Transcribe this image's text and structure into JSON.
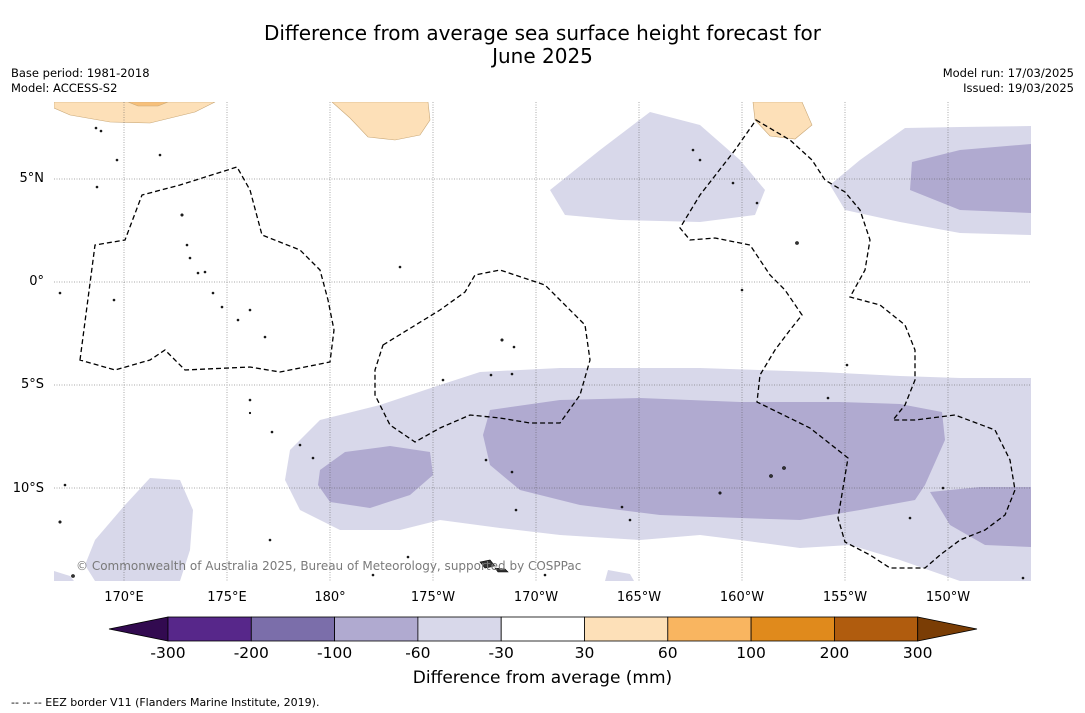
{
  "title_line1": "Difference from average sea surface height forecast for",
  "title_line2": "June 2025",
  "meta": {
    "base_period": "Base period: 1981-2018",
    "model": "Model: ACCESS-S2",
    "model_run": "Model run: 17/03/2025",
    "issued": "Issued: 19/03/2025"
  },
  "copyright": "© Commonwealth of Australia 2025, Bureau of Meteorology, supported by COSPPac",
  "lat_labels": [
    "5°N",
    "0°",
    "5°S",
    "10°S"
  ],
  "lon_labels": [
    "170°E",
    "175°E",
    "180°",
    "175°W",
    "170°W",
    "165°W",
    "160°W",
    "155°W",
    "150°W"
  ],
  "colorbar": {
    "title": "Difference from average (mm)",
    "ticks": [
      "-300",
      "-200",
      "-100",
      "-60",
      "-30",
      "30",
      "60",
      "100",
      "200",
      "300"
    ],
    "colors": [
      "#320a50",
      "#57278a",
      "#7b6eaa",
      "#b0aad0",
      "#d8d8ea",
      "#ffffff",
      "#fde0b8",
      "#f9b560",
      "#e08a1c",
      "#b05c0e",
      "#7a3d05"
    ]
  },
  "footer": "--  --  -- EEZ border V11 (Flanders Marine Institute, 2019)."
}
